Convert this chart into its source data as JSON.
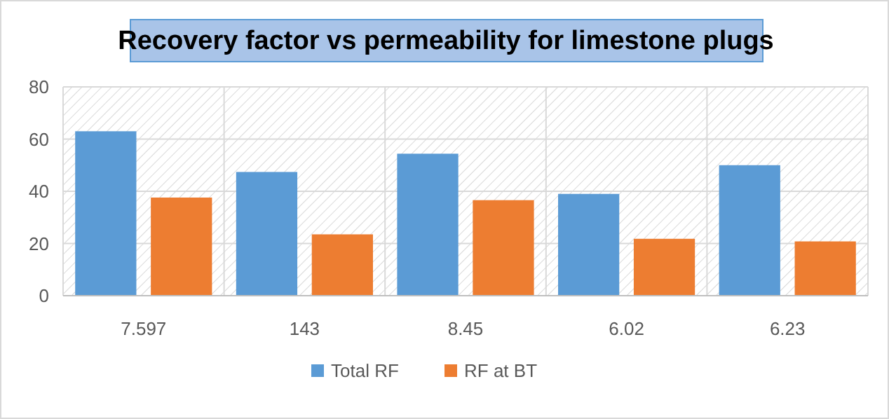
{
  "chart_data": {
    "type": "bar",
    "title": "Recovery factor vs permeability for limestone plugs",
    "categories": [
      "7.597",
      "143",
      "8.45",
      "6.02",
      "6.23"
    ],
    "series": [
      {
        "name": "Total RF",
        "color": "#5b9bd5",
        "values": [
          63,
          47.4,
          54.4,
          39,
          50
        ]
      },
      {
        "name": "RF at BT",
        "color": "#ed7d31",
        "values": [
          37.6,
          23.5,
          36.6,
          21.8,
          20.8
        ]
      }
    ],
    "ylim": [
      0,
      80
    ],
    "yticks": [
      0,
      20,
      40,
      60,
      80
    ],
    "grid": true,
    "legend": "bottom"
  }
}
